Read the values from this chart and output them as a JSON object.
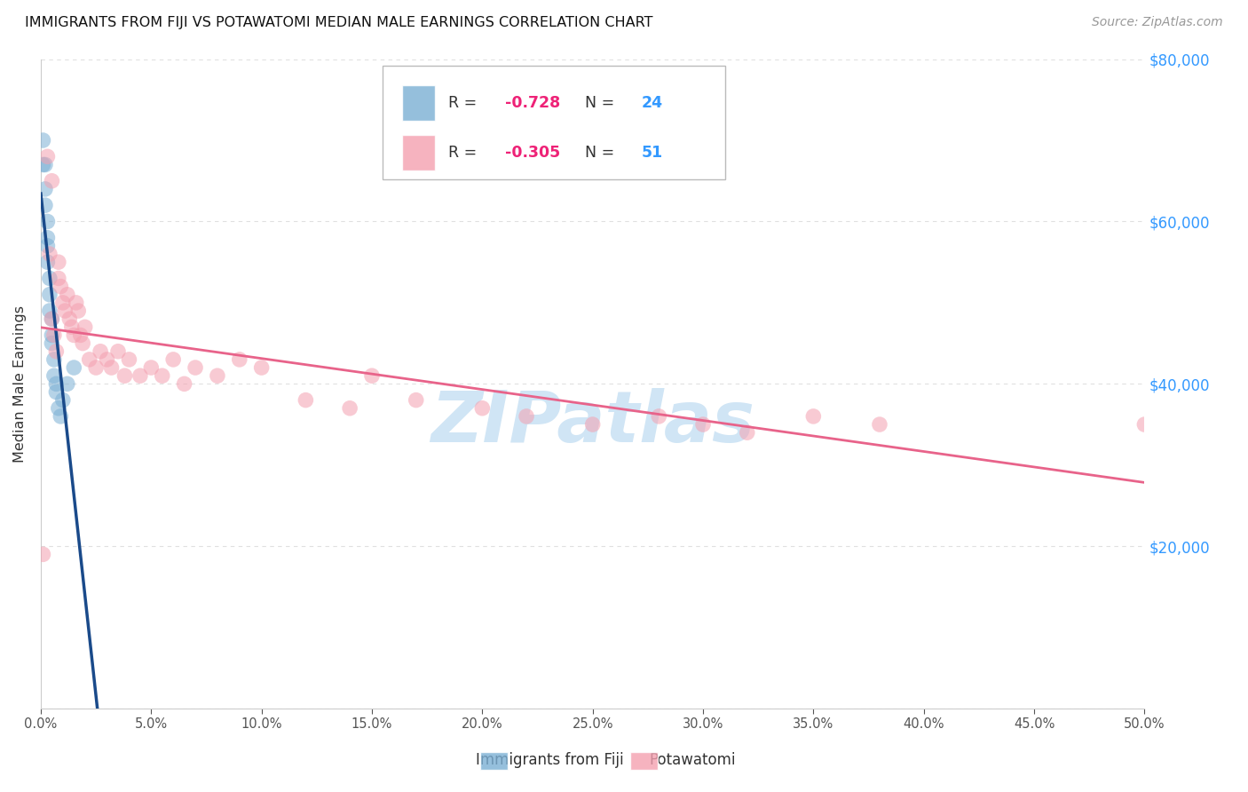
{
  "title": "IMMIGRANTS FROM FIJI VS POTAWATOMI MEDIAN MALE EARNINGS CORRELATION CHART",
  "source_text": "Source: ZipAtlas.com",
  "xlabel_fiji": "Immigrants from Fiji",
  "xlabel_potawatomi": "Potawatomi",
  "ylabel": "Median Male Earnings",
  "fiji_R": -0.728,
  "fiji_N": 24,
  "potawatomi_R": -0.305,
  "potawatomi_N": 51,
  "fiji_color": "#7BAFD4",
  "potawatomi_color": "#F4A0B0",
  "fiji_line_color": "#1A4A8A",
  "potawatomi_line_color": "#E8638A",
  "watermark_text": "ZIPatlas",
  "watermark_color": "#D0E5F5",
  "background_color": "#FFFFFF",
  "grid_color": "#E0E0E0",
  "xlim": [
    0.0,
    0.5
  ],
  "ylim": [
    0,
    80000
  ],
  "yticks": [
    0,
    20000,
    40000,
    60000,
    80000
  ],
  "ytick_labels": [
    "",
    "$20,000",
    "$40,000",
    "$60,000",
    "$80,000"
  ],
  "xticks": [
    0.0,
    0.05,
    0.1,
    0.15,
    0.2,
    0.25,
    0.3,
    0.35,
    0.4,
    0.45,
    0.5
  ],
  "fiji_x": [
    0.001,
    0.001,
    0.002,
    0.002,
    0.002,
    0.003,
    0.003,
    0.003,
    0.003,
    0.004,
    0.004,
    0.004,
    0.005,
    0.005,
    0.005,
    0.006,
    0.006,
    0.007,
    0.007,
    0.008,
    0.009,
    0.01,
    0.012,
    0.015
  ],
  "fiji_y": [
    70000,
    67000,
    67000,
    64000,
    62000,
    60000,
    58000,
    57000,
    55000,
    53000,
    51000,
    49000,
    48000,
    46000,
    45000,
    43000,
    41000,
    40000,
    39000,
    37000,
    36000,
    38000,
    40000,
    42000
  ],
  "potawatomi_x": [
    0.001,
    0.003,
    0.004,
    0.005,
    0.005,
    0.006,
    0.007,
    0.008,
    0.008,
    0.009,
    0.01,
    0.011,
    0.012,
    0.013,
    0.014,
    0.015,
    0.016,
    0.017,
    0.018,
    0.019,
    0.02,
    0.022,
    0.025,
    0.027,
    0.03,
    0.032,
    0.035,
    0.038,
    0.04,
    0.045,
    0.05,
    0.055,
    0.06,
    0.065,
    0.07,
    0.08,
    0.09,
    0.1,
    0.12,
    0.14,
    0.15,
    0.17,
    0.2,
    0.22,
    0.25,
    0.28,
    0.3,
    0.32,
    0.35,
    0.38,
    0.5
  ],
  "potawatomi_y": [
    19000,
    68000,
    56000,
    48000,
    65000,
    46000,
    44000,
    55000,
    53000,
    52000,
    50000,
    49000,
    51000,
    48000,
    47000,
    46000,
    50000,
    49000,
    46000,
    45000,
    47000,
    43000,
    42000,
    44000,
    43000,
    42000,
    44000,
    41000,
    43000,
    41000,
    42000,
    41000,
    43000,
    40000,
    42000,
    41000,
    43000,
    42000,
    38000,
    37000,
    41000,
    38000,
    37000,
    36000,
    35000,
    36000,
    35000,
    34000,
    36000,
    35000,
    35000
  ]
}
